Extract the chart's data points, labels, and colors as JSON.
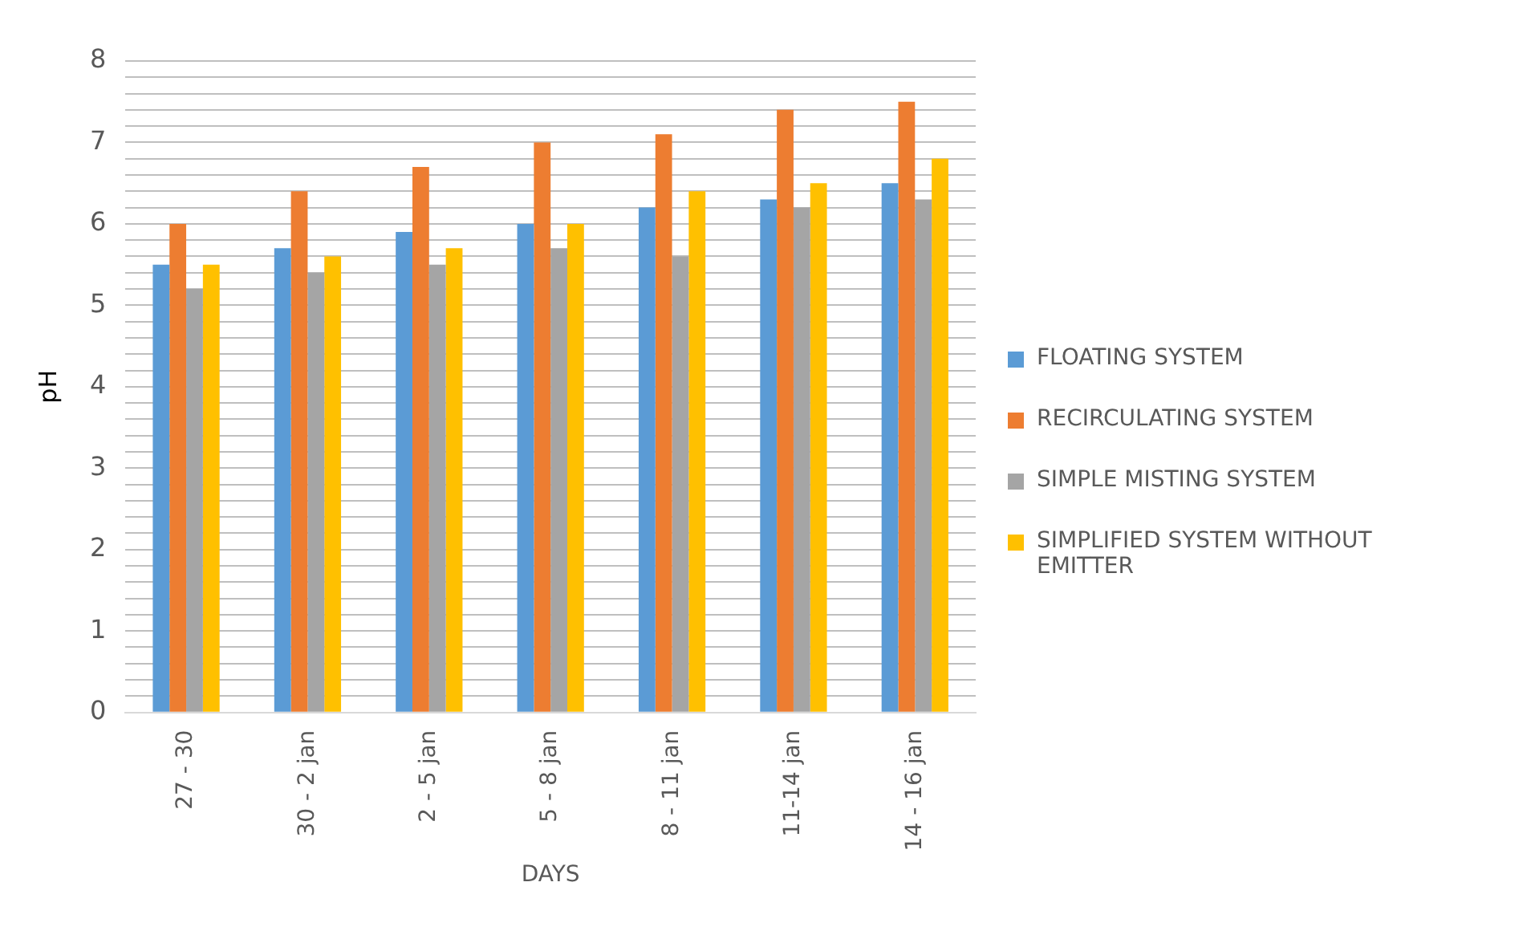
{
  "chart_data": {
    "type": "bar",
    "xlabel": "DAYS",
    "ylabel": "pH",
    "categories": [
      "27 - 30",
      "30 - 2 jan",
      "2 - 5 jan",
      "5 - 8 jan",
      "8 - 11 jan",
      "11-14 jan",
      "14 - 16 jan"
    ],
    "series": [
      {
        "name": "FLOATING SYSTEM",
        "color": "#5b9bd5",
        "values": [
          5.5,
          5.7,
          5.9,
          6.0,
          6.2,
          6.3,
          6.5
        ]
      },
      {
        "name": "RECIRCULATING SYSTEM",
        "color": "#ed7d31",
        "values": [
          6.0,
          6.4,
          6.7,
          7.0,
          7.1,
          7.4,
          7.5
        ]
      },
      {
        "name": "SIMPLE MISTING SYSTEM",
        "color": "#a5a5a5",
        "values": [
          5.2,
          5.4,
          5.5,
          5.7,
          5.6,
          6.2,
          6.3
        ]
      },
      {
        "name": "SIMPLIFIED SYSTEM WITHOUT EMITTER",
        "color": "#ffc000",
        "values": [
          5.5,
          5.6,
          5.7,
          6.0,
          6.4,
          6.5,
          6.8
        ]
      }
    ],
    "ylim": [
      0,
      8
    ],
    "yticks": [
      0,
      {
        "value": 0.2,
        "label": null
      },
      {
        "value": 0.4,
        "label": null
      },
      {
        "value": 0.6,
        "label": null
      },
      {
        "value": 0.8,
        "label": null
      },
      1,
      {
        "value": 1.2,
        "label": null
      },
      {
        "value": 1.4,
        "label": null
      },
      {
        "value": 1.6,
        "label": null
      },
      {
        "value": 1.8,
        "label": null
      },
      2,
      {
        "value": 2.2,
        "label": null
      },
      {
        "value": 2.4,
        "label": null
      },
      {
        "value": 2.6,
        "label": null
      },
      {
        "value": 2.8,
        "label": null
      },
      3,
      {
        "value": 3.2,
        "label": null
      },
      {
        "value": 3.4,
        "label": null
      },
      {
        "value": 3.6,
        "label": null
      },
      {
        "value": 3.8,
        "label": null
      },
      4,
      {
        "value": 4.2,
        "label": null
      },
      {
        "value": 4.4,
        "label": null
      },
      {
        "value": 4.6,
        "label": null
      },
      {
        "value": 4.8,
        "label": null
      },
      5,
      {
        "value": 5.2,
        "label": null
      },
      {
        "value": 5.4,
        "label": null
      },
      {
        "value": 5.6,
        "label": null
      },
      {
        "value": 5.8,
        "label": null
      },
      6,
      {
        "value": 6.2,
        "label": null
      },
      {
        "value": 6.4,
        "label": null
      },
      {
        "value": 6.6,
        "label": null
      },
      {
        "value": 6.8,
        "label": null
      },
      7,
      {
        "value": 7.2,
        "label": null
      },
      {
        "value": 7.4,
        "label": null
      },
      {
        "value": 7.6,
        "label": null
      },
      {
        "value": 7.8,
        "label": null
      },
      8
    ],
    "grid": "y",
    "legend": "right"
  }
}
